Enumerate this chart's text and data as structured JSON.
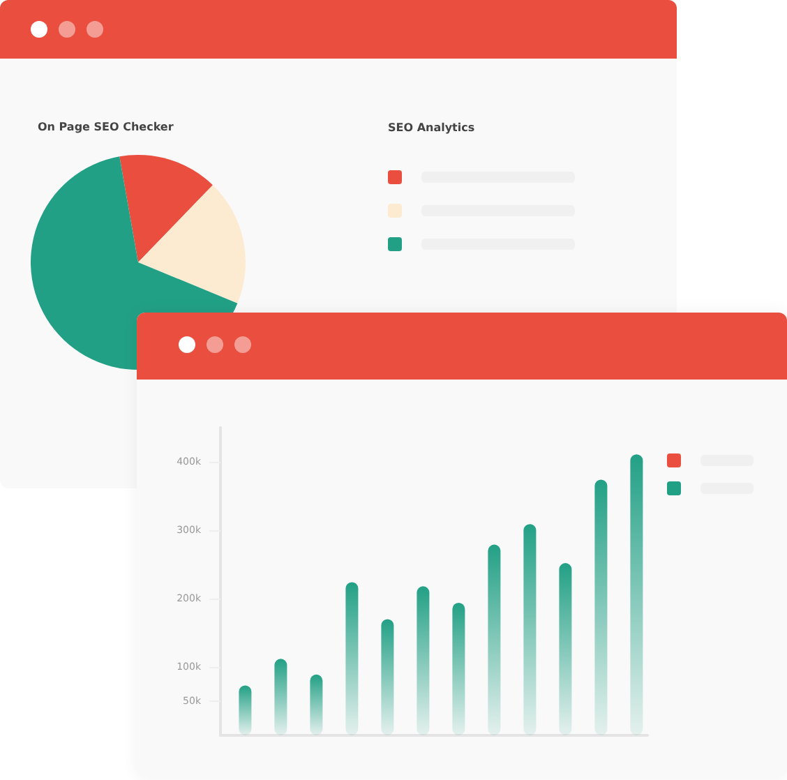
{
  "chart_data": [
    {
      "type": "pie",
      "title": "On Page SEO Checker",
      "legend_title": "SEO Analytics",
      "categories": [
        null,
        null,
        null
      ],
      "values": [
        15,
        19,
        66
      ],
      "colors": [
        "#e94e3f",
        "#fcebd1",
        "#22a085"
      ]
    },
    {
      "type": "bar",
      "categories": [
        null,
        null,
        null,
        null,
        null,
        null,
        null,
        null,
        null,
        null,
        null,
        null
      ],
      "tick_labels": "y",
      "grid": false,
      "series": [
        {
          "color": "#e94e3f",
          "values": [
            null,
            null,
            null,
            null,
            null,
            null,
            null,
            null,
            null,
            null,
            null,
            null
          ]
        },
        {
          "color": "#22a085",
          "values": [
            73,
            112,
            89,
            224,
            170,
            218,
            194,
            279,
            309,
            252,
            374,
            411
          ]
        }
      ],
      "ylim": [
        0,
        450
      ],
      "yticks": [
        {
          "value": 50,
          "label": "50k"
        },
        {
          "value": 100,
          "label": "100k"
        },
        {
          "value": 200,
          "label": "200k"
        },
        {
          "value": 300,
          "label": "300k"
        },
        {
          "value": 400,
          "label": "400k"
        }
      ]
    }
  ]
}
